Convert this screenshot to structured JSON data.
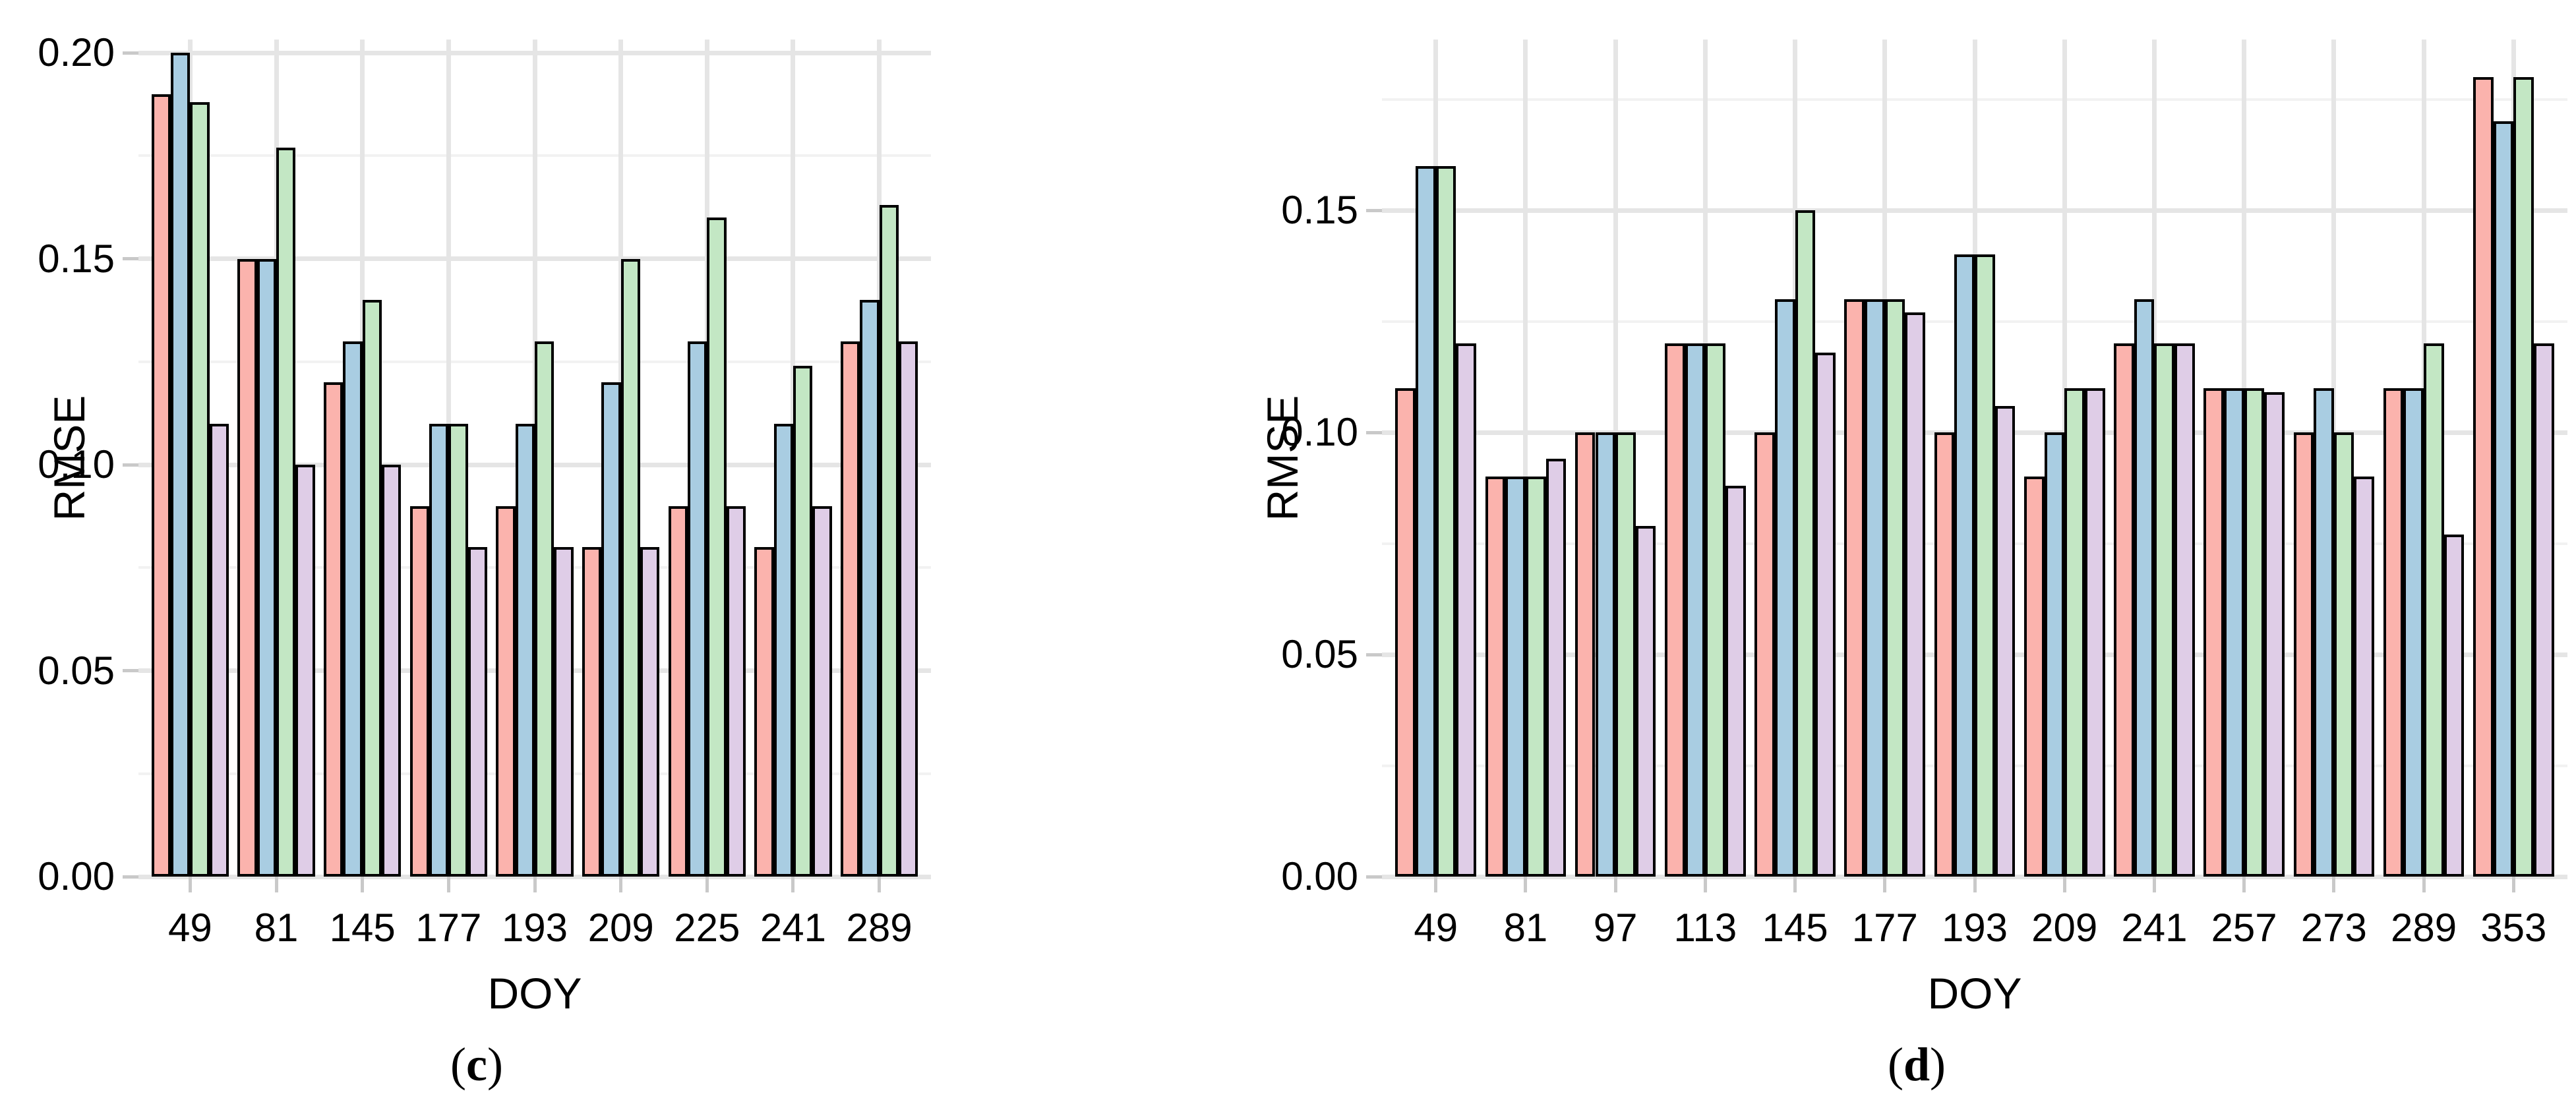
{
  "figure": {
    "background": "#FFFFFF",
    "description_colors": {
      "series_1_fill": "#FBB3AD",
      "series_2_fill": "#A9CDE2",
      "series_3_fill": "#C3E7C4",
      "series_4_fill": "#DFCDE7",
      "bar_outline": "#000000",
      "grid_major": "#E5E5E5",
      "grid_minor": "#F2F2F2",
      "tick_mark": "#C9C9C9"
    }
  },
  "chart_data": [
    {
      "type": "bar",
      "panel": "left",
      "caption": "(c)",
      "caption_open": "(",
      "caption_letter": "c",
      "caption_close": ")",
      "xlabel": "DOY",
      "ylabel": "RMSE",
      "categories": [
        "49",
        "81",
        "145",
        "177",
        "193",
        "209",
        "225",
        "241",
        "289"
      ],
      "series": [
        {
          "name": "series_1",
          "color": "#FBB3AD",
          "values": [
            0.19,
            0.15,
            0.12,
            0.09,
            0.09,
            0.08,
            0.09,
            0.08,
            0.13
          ]
        },
        {
          "name": "series_2",
          "color": "#A9CDE2",
          "values": [
            0.2,
            0.15,
            0.13,
            0.11,
            0.11,
            0.12,
            0.13,
            0.11,
            0.14
          ]
        },
        {
          "name": "series_3",
          "color": "#C3E7C4",
          "values": [
            0.188,
            0.177,
            0.14,
            0.11,
            0.13,
            0.15,
            0.16,
            0.124,
            0.163
          ]
        },
        {
          "name": "series_4",
          "color": "#DFCDE7",
          "values": [
            0.11,
            0.1,
            0.1,
            0.08,
            0.08,
            0.08,
            0.09,
            0.09,
            0.13
          ]
        }
      ],
      "yticks": [
        {
          "v": 0.0,
          "label": "0.00"
        },
        {
          "v": 0.05,
          "label": "0.05"
        },
        {
          "v": 0.1,
          "label": "0.10"
        },
        {
          "v": 0.15,
          "label": "0.15"
        },
        {
          "v": 0.2,
          "label": "0.20"
        }
      ],
      "ylim": [
        0,
        0.203
      ],
      "grid": "major and minor horizontal, major vertical at category centers",
      "legend": "none"
    },
    {
      "type": "bar",
      "panel": "right",
      "caption": "(d)",
      "caption_open": "(",
      "caption_letter": "d",
      "caption_close": ")",
      "xlabel": "DOY",
      "ylabel": "RMSE",
      "categories": [
        "49",
        "81",
        "97",
        "113",
        "145",
        "177",
        "193",
        "209",
        "241",
        "257",
        "273",
        "289",
        "353"
      ],
      "series": [
        {
          "name": "series_1",
          "color": "#FBB3AD",
          "values": [
            0.11,
            0.09,
            0.1,
            0.12,
            0.1,
            0.13,
            0.1,
            0.09,
            0.12,
            0.11,
            0.1,
            0.11,
            0.18
          ]
        },
        {
          "name": "series_2",
          "color": "#A9CDE2",
          "values": [
            0.16,
            0.09,
            0.1,
            0.12,
            0.13,
            0.13,
            0.14,
            0.1,
            0.13,
            0.11,
            0.11,
            0.11,
            0.17
          ]
        },
        {
          "name": "series_3",
          "color": "#C3E7C4",
          "values": [
            0.16,
            0.09,
            0.1,
            0.12,
            0.15,
            0.13,
            0.14,
            0.11,
            0.12,
            0.11,
            0.1,
            0.12,
            0.18
          ]
        },
        {
          "name": "series_4",
          "color": "#DFCDE7",
          "values": [
            0.12,
            0.094,
            0.079,
            0.088,
            0.118,
            0.127,
            0.106,
            0.11,
            0.12,
            0.109,
            0.09,
            0.077,
            0.12
          ]
        }
      ],
      "yticks": [
        {
          "v": 0.0,
          "label": "0.00"
        },
        {
          "v": 0.05,
          "label": "0.05"
        },
        {
          "v": 0.1,
          "label": "0.10"
        },
        {
          "v": 0.15,
          "label": "0.15"
        }
      ],
      "ylim": [
        0,
        0.188
      ],
      "grid": "major and minor horizontal, major vertical at category centers",
      "legend": "none"
    }
  ]
}
